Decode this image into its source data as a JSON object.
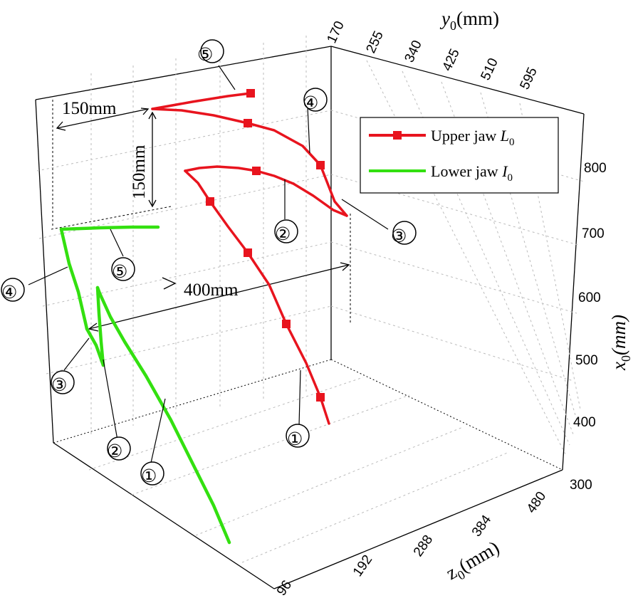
{
  "chart_data": {
    "type": "line",
    "projection": "3d",
    "xlabel_var": "x",
    "xlabel_sub": "0",
    "xlabel_unit": "(mm)",
    "ylabel_var": "y",
    "ylabel_sub": "0",
    "ylabel_unit": "(mm)",
    "zlabel_var": "z",
    "zlabel_sub": "0",
    "zlabel_unit": "(mm)",
    "x_ticks": [
      "300",
      "400",
      "500",
      "600",
      "700",
      "800"
    ],
    "y_ticks": [
      "170",
      "255",
      "340",
      "425",
      "510",
      "595"
    ],
    "z_ticks": [
      "96",
      "192",
      "288",
      "384",
      "480"
    ],
    "xlim": [
      300,
      850
    ],
    "ylim": [
      170,
      680
    ],
    "zlim": [
      96,
      576
    ],
    "grid": true,
    "legend_position": "top-right",
    "series": [
      {
        "name": "Upper jaw ",
        "name_sub": "0",
        "name_var": "L",
        "color": "#e8141e",
        "marker": "square",
        "segments": [
          {
            "label": "1",
            "x0": [
              380,
              440,
              530,
              620,
              700,
              740,
              770
            ],
            "y0": [
              560,
              555,
              545,
              530,
              520,
              470,
              380
            ],
            "z0": [
              580,
              560,
              560,
              555,
              560,
              560,
              560
            ]
          },
          {
            "label": "2",
            "x0": [
              770,
              780,
              778,
              770,
              755,
              740
            ],
            "y0": [
              380,
              420,
              460,
              510,
              560,
              600
            ],
            "z0": [
              560,
              560,
              560,
              560,
              560,
              560
            ]
          },
          {
            "label": "3",
            "x0": [
              740,
              750,
              770
            ],
            "y0": [
              600,
              575,
              560
            ],
            "z0": [
              560,
              560,
              560
            ]
          },
          {
            "label": "4",
            "x0": [
              770,
              800,
              830,
              855
            ],
            "y0": [
              560,
              510,
              460,
              380
            ],
            "z0": [
              560,
              560,
              560,
              560
            ]
          },
          {
            "label": "5",
            "x0": [
              855,
              860,
              880
            ],
            "y0": [
              380,
              430,
              480
            ],
            "z0": [
              560,
              560,
              560
            ]
          }
        ]
      },
      {
        "name": "Lower jaw ",
        "name_sub": "0",
        "name_var": "I",
        "color": "#33e010",
        "marker": "none",
        "segments": [
          {
            "label": "1",
            "x0": [
              380,
              450,
              520,
              600
            ],
            "y0": [
              330,
              290,
              250,
              190
            ],
            "z0": [
              96,
              150,
              190,
              230
            ]
          },
          {
            "label": "2",
            "x0": [
              600,
              560,
              520
            ],
            "y0": [
              190,
              200,
              200
            ],
            "z0": [
              230,
              230,
              230
            ]
          },
          {
            "label": "3",
            "x0": [
              520,
              540
            ],
            "y0": [
              200,
              180
            ],
            "z0": [
              230,
              230
            ]
          },
          {
            "label": "4",
            "x0": [
              540,
              700
            ],
            "y0": [
              180,
              170
            ],
            "z0": [
              230,
              230
            ]
          },
          {
            "label": "5",
            "x0": [
              700,
              710
            ],
            "y0": [
              170,
              250
            ],
            "z0": [
              230,
              230
            ]
          }
        ]
      }
    ],
    "annotations": [
      "150mm",
      "150mm",
      "400mm"
    ],
    "circled_labels": [
      "①",
      "②",
      "③",
      "④",
      "⑤"
    ]
  }
}
